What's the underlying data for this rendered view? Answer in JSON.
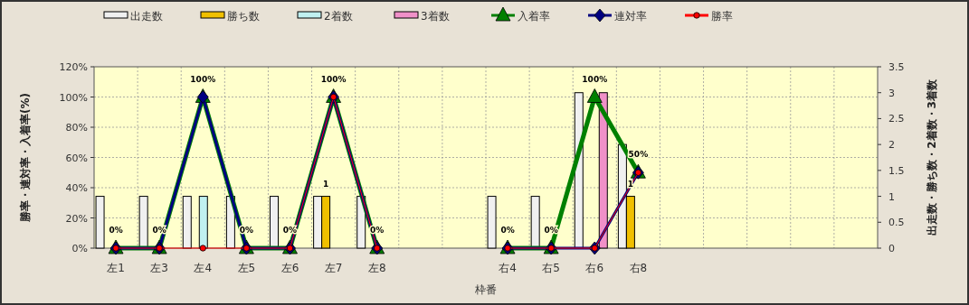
{
  "chart_data": {
    "type": "bar",
    "xlabel": "枠番",
    "ylabel": "勝率・連対率・入着率(%)",
    "y2label": "出走数・勝ち数・2着数・3着数",
    "categories": [
      "左1",
      "左3",
      "左4",
      "左5",
      "左6",
      "左7",
      "左8",
      null,
      null,
      "右4",
      "右5",
      "右6",
      "右8",
      null,
      null,
      null,
      null,
      null
    ],
    "ylim": [
      0,
      120
    ],
    "yticks": [
      {
        "value": 0,
        "label": "0%"
      },
      {
        "value": 20,
        "label": "20%"
      },
      {
        "value": 40,
        "label": "40%"
      },
      {
        "value": 60,
        "label": "60%"
      },
      {
        "value": 80,
        "label": "80%"
      },
      {
        "value": 100,
        "label": "100%"
      },
      {
        "value": 120,
        "label": "120%"
      }
    ],
    "y2lim": [
      0,
      3.5
    ],
    "y2ticks": [
      0,
      0.5,
      1,
      1.5,
      2,
      2.5,
      3,
      3.5
    ],
    "grid": true,
    "legend": "top",
    "series": [
      {
        "name": "出走数",
        "color": "#f0f0f0",
        "axis": "y2",
        "values": [
          1,
          1,
          1,
          1,
          1,
          1,
          1,
          null,
          null,
          1,
          1,
          3,
          2,
          null,
          null,
          null,
          null,
          null
        ]
      },
      {
        "name": "勝ち数",
        "color": "#f0c000",
        "axis": "y2",
        "values": [
          0,
          0,
          0,
          0,
          0,
          1,
          0,
          null,
          null,
          0,
          0,
          0,
          1,
          null,
          null,
          null,
          null,
          null
        ],
        "value_labels": [
          null,
          null,
          null,
          null,
          null,
          "1",
          null,
          null,
          null,
          null,
          null,
          null,
          "1",
          null,
          null,
          null,
          null,
          null
        ]
      },
      {
        "name": "2着数",
        "color": "#c0f0f0",
        "axis": "y2",
        "values": [
          0,
          0,
          1,
          0,
          0,
          0,
          0,
          null,
          null,
          0,
          0,
          0,
          0,
          null,
          null,
          null,
          null,
          null
        ]
      },
      {
        "name": "3着数",
        "color": "#f090c8",
        "axis": "y2",
        "values": [
          0,
          0,
          0,
          0,
          0,
          0,
          0,
          null,
          null,
          0,
          0,
          3,
          0,
          null,
          null,
          null,
          null,
          null
        ]
      },
      {
        "name": "入着率",
        "color": "#008000",
        "type": "line",
        "marker": "triangle",
        "values": [
          0,
          0,
          100,
          0,
          0,
          100,
          0,
          null,
          null,
          0,
          0,
          100,
          50,
          null,
          null,
          null,
          null,
          null
        ],
        "value_labels": [
          "0%",
          "0%",
          "100%",
          "0%",
          "0%",
          "100%",
          "0%",
          null,
          null,
          "0%",
          "0%",
          "100%",
          "50%",
          null,
          null,
          null,
          null,
          null
        ]
      },
      {
        "name": "連対率",
        "color": "#000080",
        "type": "line",
        "marker": "diamond",
        "values": [
          0,
          0,
          100,
          0,
          0,
          100,
          0,
          null,
          null,
          0,
          0,
          0,
          50,
          null,
          null,
          null,
          null,
          null
        ]
      },
      {
        "name": "勝率",
        "color": "#ff0000",
        "type": "line",
        "marker": "circle",
        "values": [
          0,
          0,
          0,
          0,
          0,
          100,
          0,
          null,
          null,
          0,
          0,
          0,
          50,
          null,
          null,
          null,
          null,
          null
        ]
      }
    ]
  }
}
